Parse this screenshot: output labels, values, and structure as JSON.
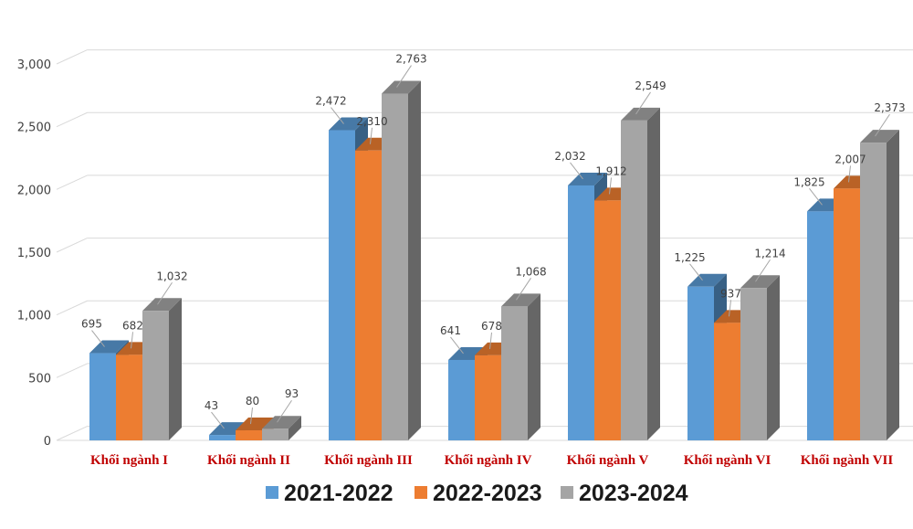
{
  "chart_data": {
    "type": "bar",
    "title": "",
    "xlabel": "",
    "ylabel": "",
    "ylim": [
      0,
      3000
    ],
    "yticks": [
      0,
      500,
      1000,
      1500,
      2000,
      2500,
      3000
    ],
    "ytick_labels": [
      "0",
      "500",
      "1,000",
      "1,500",
      "2,000",
      "2,500",
      "3,000"
    ],
    "grid": true,
    "legend_position": "bottom",
    "categories": [
      "Khối ngành I",
      "Khối ngành II",
      "Khối ngành III",
      "Khối ngành IV",
      "Khối ngành V",
      "Khối ngành VI",
      "Khối ngành VII"
    ],
    "series": [
      {
        "name": "2021-2022",
        "color": "#5b9bd5",
        "values": [
          695,
          43,
          2472,
          641,
          2032,
          1225,
          1825
        ],
        "labels": [
          "695",
          "43",
          "2,472",
          "641",
          "2,032",
          "1,225",
          "1,825"
        ]
      },
      {
        "name": "2022-2023",
        "color": "#ed7d31",
        "values": [
          682,
          80,
          2310,
          678,
          1912,
          937,
          2007
        ],
        "labels": [
          "682",
          "80",
          "2,310",
          "678",
          "1,912",
          "937",
          "2,007"
        ]
      },
      {
        "name": "2023-2024",
        "color": "#a5a5a5",
        "values": [
          1032,
          93,
          2763,
          1068,
          2549,
          1214,
          2373
        ],
        "labels": [
          "1,032",
          "93",
          "2,763",
          "1,068",
          "2,549",
          "1,214",
          "2,373"
        ]
      }
    ]
  }
}
